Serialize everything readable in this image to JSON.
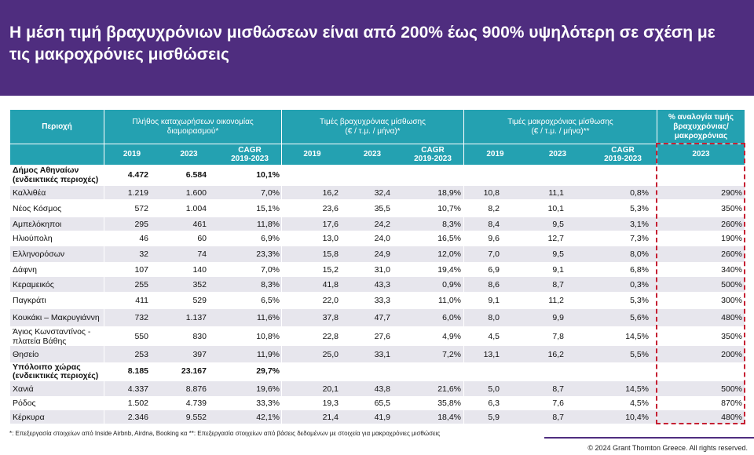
{
  "slide": {
    "title": "Η μέση τιμή βραχυχρόνιων μισθώσεων είναι από 200% έως 900% υψηλότερη σε σχέση με\nτις μακροχρόνιες μισθώσεις",
    "footnote": "*: Επεξεργασία στοιχείων από Inside Airbnb, Airdna, Booking κα **: Επεξεργασία στοιχείων από βάσεις δεδομένων με στοιχεία για μακροχρόνιες μισθώσεις",
    "copyright": "© 2024 Grant Thornton Greece. All rights reserved."
  },
  "colors": {
    "brand_purple": "#4f2d7f",
    "header_teal": "#24a1b1",
    "row_stripe": "#e7e6ed",
    "highlight_red": "#c62033"
  },
  "table": {
    "region_header": "Περιοχή",
    "groups": [
      {
        "label": "Πλήθος καταχωρήσεων οικονομίας\nδιαμοιρασμού*",
        "columns": [
          "2019",
          "2023",
          "CAGR\n2019-2023"
        ]
      },
      {
        "label": "Τιμές βραχυχρόνιας μίσθωσης\n(€ / τ.μ. / μήνα)*",
        "columns": [
          "2019",
          "2023",
          "CAGR\n2019-2023"
        ]
      },
      {
        "label": "Τιμές μακροχρόνιας μίσθωσης\n(€ / τ.μ. / μήνα)**",
        "columns": [
          "2019",
          "2023",
          "CAGR\n2019-2023"
        ]
      },
      {
        "label": "% αναλογία τιμής\nβραχυχρόνιας/\nμακροχρόνιας",
        "columns": [
          "2023"
        ]
      }
    ],
    "sections": [
      {
        "region": "Δήμος Αθηναίων\n(ενδεικτικές περιοχές)",
        "values": [
          "4.472",
          "6.584",
          "10,1%"
        ],
        "rows": [
          {
            "region": "Καλλιθέα",
            "values": [
              "1.219",
              "1.600",
              "7,0%",
              "16,2",
              "32,4",
              "18,9%",
              "10,8",
              "11,1",
              "0,8%",
              "290%"
            ]
          },
          {
            "region": "Νέος Κόσμος",
            "values": [
              "572",
              "1.004",
              "15,1%",
              "23,6",
              "35,5",
              "10,7%",
              "8,2",
              "10,1",
              "5,3%",
              "350%"
            ]
          },
          {
            "region": "Αμπελόκηποι",
            "values": [
              "295",
              "461",
              "11,8%",
              "17,6",
              "24,2",
              "8,3%",
              "8,4",
              "9,5",
              "3,1%",
              "260%"
            ]
          },
          {
            "region": "Ηλιούπολη",
            "values": [
              "46",
              "60",
              "6,9%",
              "13,0",
              "24,0",
              "16,5%",
              "9,6",
              "12,7",
              "7,3%",
              "190%"
            ]
          },
          {
            "region": "Ελληνορόσων",
            "values": [
              "32",
              "74",
              "23,3%",
              "15,8",
              "24,9",
              "12,0%",
              "7,0",
              "9,5",
              "8,0%",
              "260%"
            ]
          },
          {
            "region": "Δάφνη",
            "values": [
              "107",
              "140",
              "7,0%",
              "15,2",
              "31,0",
              "19,4%",
              "6,9",
              "9,1",
              "6,8%",
              "340%"
            ]
          },
          {
            "region": "Κεραμεικός",
            "values": [
              "255",
              "352",
              "8,3%",
              "41,8",
              "43,3",
              "0,9%",
              "8,6",
              "8,7",
              "0,3%",
              "500%"
            ]
          },
          {
            "region": "Παγκράτι",
            "values": [
              "411",
              "529",
              "6,5%",
              "22,0",
              "33,3",
              "11,0%",
              "9,1",
              "11,2",
              "5,3%",
              "300%"
            ]
          },
          {
            "region": "Κουκάκι – Μακρυγιάννη",
            "values": [
              "732",
              "1.137",
              "11,6%",
              "37,8",
              "47,7",
              "6,0%",
              "8,0",
              "9,9",
              "5,6%",
              "480%"
            ]
          },
          {
            "region": "Άγιος Κωνσταντίνος -\nπλατεία Βάθης",
            "values": [
              "550",
              "830",
              "10,8%",
              "22,8",
              "27,6",
              "4,9%",
              "4,5",
              "7,8",
              "14,5%",
              "350%"
            ]
          },
          {
            "region": "Θησείο",
            "values": [
              "253",
              "397",
              "11,9%",
              "25,0",
              "33,1",
              "7,2%",
              "13,1",
              "16,2",
              "5,5%",
              "200%"
            ]
          }
        ]
      },
      {
        "region": "Υπόλοιπο χώρας\n(ενδεικτικές περιοχές)",
        "values": [
          "8.185",
          "23.167",
          "29,7%"
        ],
        "rows": [
          {
            "region": "Χανιά",
            "values": [
              "4.337",
              "8.876",
              "19,6%",
              "20,1",
              "43,8",
              "21,6%",
              "5,0",
              "8,7",
              "14,5%",
              "500%"
            ]
          },
          {
            "region": "Ρόδος",
            "values": [
              "1.502",
              "4.739",
              "33,3%",
              "19,3",
              "65,5",
              "35,8%",
              "6,3",
              "7,6",
              "4,5%",
              "870%"
            ]
          },
          {
            "region": "Κέρκυρα",
            "values": [
              "2.346",
              "9.552",
              "42,1%",
              "21,4",
              "41,9",
              "18,4%",
              "5,9",
              "8,7",
              "10,4%",
              "480%"
            ]
          }
        ]
      }
    ]
  }
}
